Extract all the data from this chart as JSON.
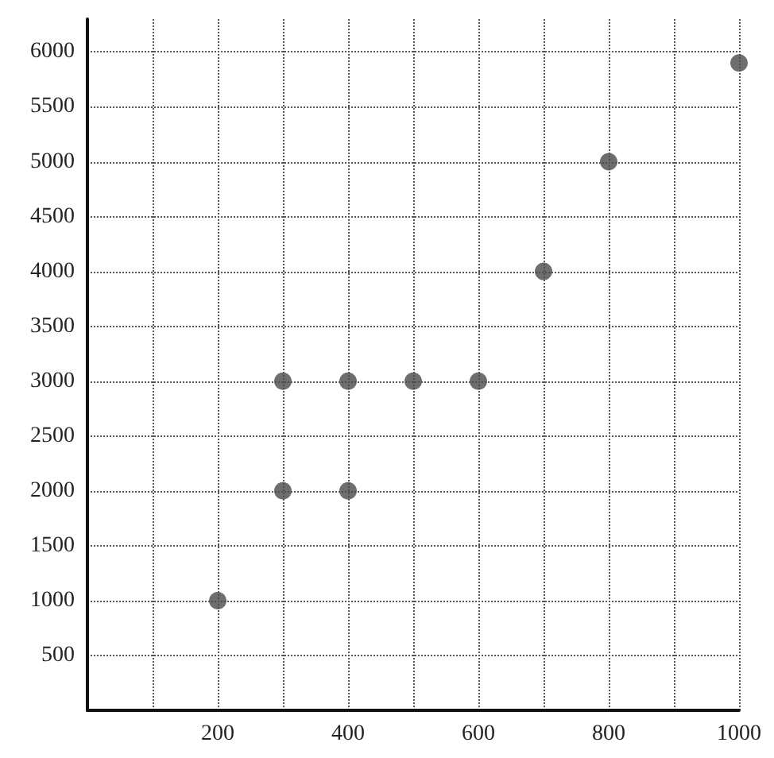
{
  "chart_data": {
    "type": "scatter",
    "x": [
      200,
      300,
      300,
      400,
      400,
      500,
      600,
      700,
      800,
      1000
    ],
    "values": [
      1000,
      2000,
      3000,
      2000,
      3000,
      3000,
      3000,
      4000,
      5000,
      5900
    ],
    "color": "#4a4a4a",
    "marker": "circle",
    "xlim": [
      0,
      1000
    ],
    "xticks": [
      {
        "value": 100,
        "label": null
      },
      200,
      {
        "value": 300,
        "label": null
      },
      400,
      {
        "value": 500,
        "label": null
      },
      600,
      {
        "value": 700,
        "label": null
      },
      800,
      {
        "value": 900,
        "label": null
      },
      1000
    ],
    "ylim": [
      0,
      6300
    ],
    "yticks": [
      500,
      1000,
      1500,
      2000,
      2500,
      3000,
      3500,
      4000,
      4500,
      5000,
      5500,
      6000
    ],
    "grid": true
  }
}
